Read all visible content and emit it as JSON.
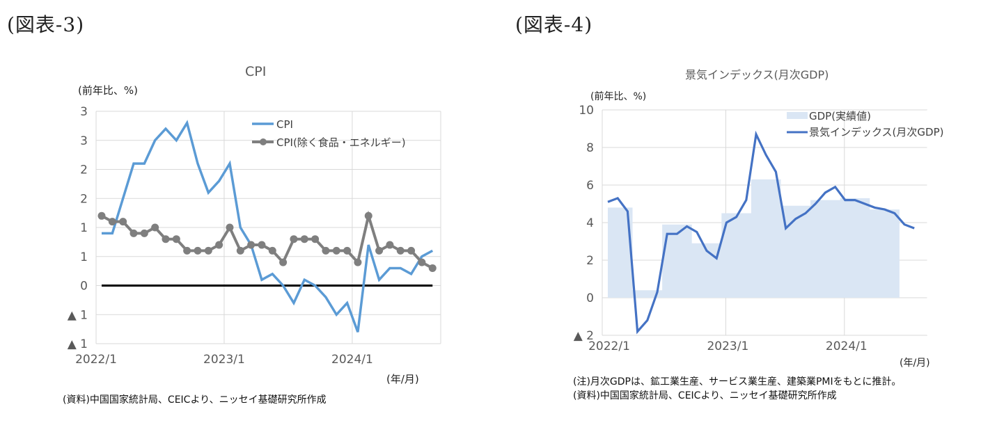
{
  "figure3": {
    "label": "(図表-3)",
    "title": "CPI",
    "unit": "(前年比、%)",
    "xunit": "(年/月)",
    "source": "(資料)中国国家統計局、CEICより、ニッセイ基礎研究所作成",
    "legend": [
      "CPI",
      "CPI(除く食品・エネルギー)"
    ],
    "y_tick_labels": [
      "3",
      "3",
      "2",
      "2",
      "1",
      "1",
      "0",
      "▲ 1",
      "▲ 1"
    ],
    "x_tick_labels": [
      "2022/1",
      "2023/1",
      "2024/1"
    ]
  },
  "figure4": {
    "label": "(図表-4)",
    "title": "景気インデックス(月次GDP)",
    "unit": "(前年比、%)",
    "xunit": "(年/月)",
    "note": "(注)月次GDPは、鉱工業生産、サービス業生産、建築業PMIをもとに推計。",
    "source": "(資料)中国国家統計局、CEICより、ニッセイ基礎研究所作成",
    "legend": [
      "GDP(実績値)",
      "景気インデックス(月次GDP)"
    ],
    "y_tick_labels": [
      "10",
      "8",
      "6",
      "4",
      "2",
      "0",
      "▲ 2"
    ],
    "x_tick_labels": [
      "2022/1",
      "2023/1",
      "2024/1"
    ]
  },
  "colors": {
    "cpi": "#5B9BD5",
    "core": "#7F7F7F",
    "gdp_area": "#DAE6F4",
    "index_line": "#4472C4",
    "grid": "#D9D9D9",
    "zero_line": "#000000"
  },
  "chart_data": [
    {
      "type": "line",
      "title": "CPI",
      "xlabel": "(年/月)",
      "ylabel": "(前年比、%)",
      "ylim": [
        -1.0,
        3.0
      ],
      "yticks": [
        3.0,
        2.5,
        2.0,
        1.5,
        1.0,
        0.5,
        0,
        -0.5,
        -1.0
      ],
      "grid": true,
      "legend_position": "top-right",
      "x": [
        "2022/1",
        "2022/2",
        "2022/3",
        "2022/4",
        "2022/5",
        "2022/6",
        "2022/7",
        "2022/8",
        "2022/9",
        "2022/10",
        "2022/11",
        "2022/12",
        "2023/1",
        "2023/2",
        "2023/3",
        "2023/4",
        "2023/5",
        "2023/6",
        "2023/7",
        "2023/8",
        "2023/9",
        "2023/10",
        "2023/11",
        "2023/12",
        "2024/1",
        "2024/2",
        "2024/3",
        "2024/4",
        "2024/5",
        "2024/6",
        "2024/7",
        "2024/8"
      ],
      "series": [
        {
          "name": "CPI",
          "values": [
            0.9,
            0.9,
            1.5,
            2.1,
            2.1,
            2.5,
            2.7,
            2.5,
            2.8,
            2.1,
            1.6,
            1.8,
            2.1,
            1.0,
            0.7,
            0.1,
            0.2,
            0.0,
            -0.3,
            0.1,
            0.0,
            -0.2,
            -0.5,
            -0.3,
            -0.8,
            0.7,
            0.1,
            0.3,
            0.3,
            0.2,
            0.5,
            0.6
          ]
        },
        {
          "name": "CPI(除く食品・エネルギー)",
          "values": [
            1.2,
            1.1,
            1.1,
            0.9,
            0.9,
            1.0,
            0.8,
            0.8,
            0.6,
            0.6,
            0.6,
            0.7,
            1.0,
            0.6,
            0.7,
            0.7,
            0.6,
            0.4,
            0.8,
            0.8,
            0.8,
            0.6,
            0.6,
            0.6,
            0.4,
            1.2,
            0.6,
            0.7,
            0.6,
            0.6,
            0.4,
            0.3
          ]
        }
      ]
    },
    {
      "type": "line",
      "title": "景気インデックス(月次GDP)",
      "xlabel": "(年/月)",
      "ylabel": "(前年比、%)",
      "ylim": [
        -2,
        10
      ],
      "yticks": [
        10,
        8,
        6,
        4,
        2,
        0,
        -2
      ],
      "grid": true,
      "legend_position": "top-right",
      "x": [
        "2022/1",
        "2022/2",
        "2022/3",
        "2022/4",
        "2022/5",
        "2022/6",
        "2022/7",
        "2022/8",
        "2022/9",
        "2022/10",
        "2022/11",
        "2022/12",
        "2023/1",
        "2023/2",
        "2023/3",
        "2023/4",
        "2023/5",
        "2023/6",
        "2023/7",
        "2023/8",
        "2023/9",
        "2023/10",
        "2023/11",
        "2023/12",
        "2024/1",
        "2024/2",
        "2024/3",
        "2024/4",
        "2024/5",
        "2024/6",
        "2024/7",
        "2024/8"
      ],
      "series": [
        {
          "name": "GDP(実績値)",
          "type": "area",
          "values": [
            4.8,
            4.8,
            4.8,
            0.4,
            0.4,
            0.4,
            3.9,
            3.9,
            3.9,
            2.9,
            2.9,
            2.9,
            4.5,
            4.5,
            4.5,
            6.3,
            6.3,
            6.3,
            4.9,
            4.9,
            4.9,
            5.2,
            5.2,
            5.2,
            5.3,
            5.3,
            5.3,
            4.7,
            4.7,
            4.7,
            null,
            null
          ]
        },
        {
          "name": "景気インデックス(月次GDP)",
          "type": "line",
          "values": [
            5.1,
            5.3,
            4.6,
            -1.8,
            -1.2,
            0.3,
            3.4,
            3.4,
            3.8,
            3.5,
            2.5,
            2.1,
            4.0,
            4.3,
            5.2,
            8.7,
            7.6,
            6.7,
            3.7,
            4.2,
            4.5,
            5.0,
            5.6,
            5.9,
            5.2,
            5.2,
            5.0,
            4.8,
            4.7,
            4.5,
            3.9,
            3.7
          ]
        }
      ]
    }
  ]
}
